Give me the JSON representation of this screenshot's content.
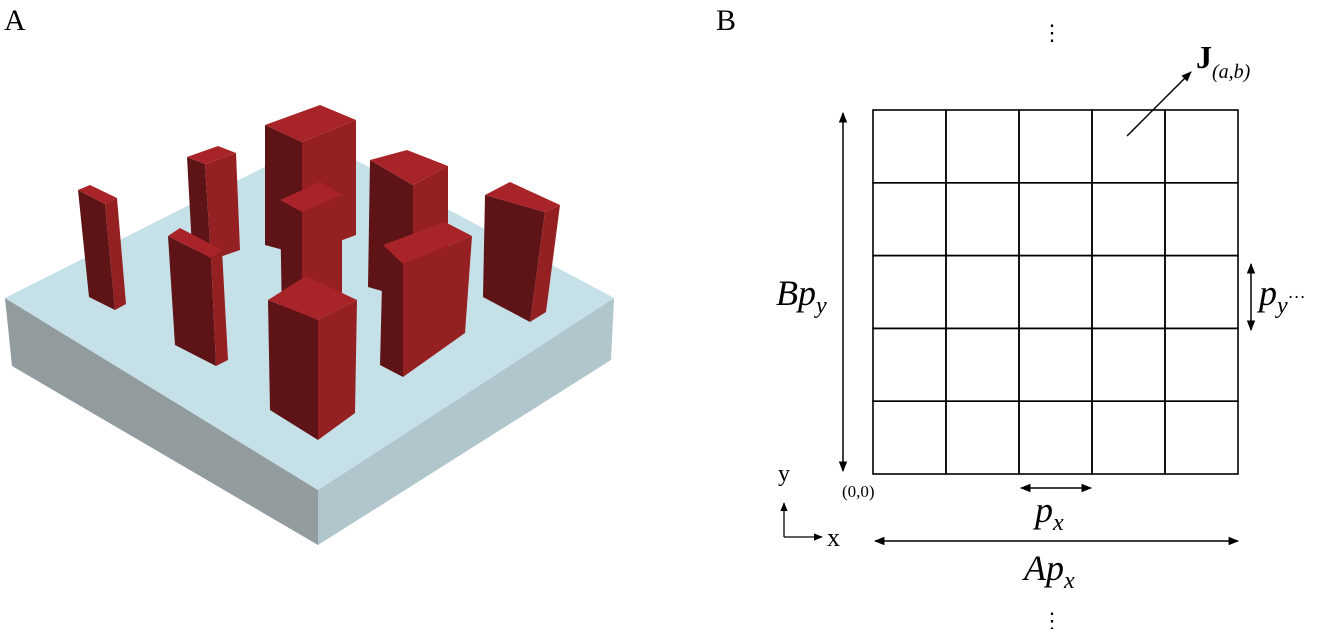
{
  "panel_a": {
    "label": "A",
    "colors": {
      "pillar_top": "#a82428",
      "pillar_left": "#5e1416",
      "pillar_right": "#952022",
      "slab_top": "#c6e0e8",
      "slab_left": "#929c9f",
      "slab_right": "#b0c6cc"
    },
    "pillar_count": 9
  },
  "panel_b": {
    "label": "B",
    "grid": {
      "columns": 5,
      "rows": 5
    },
    "cell_label": {
      "main": "J",
      "sub": "(a,b)"
    },
    "height_label": {
      "main": "Bp",
      "sub": "y"
    },
    "period_y_label": {
      "main": "p",
      "sub": "y",
      "trail": "···"
    },
    "period_x_label": {
      "main": "p",
      "sub": "x"
    },
    "width_label": {
      "main": "Ap",
      "sub": "x"
    },
    "origin_label": "(0,0)",
    "axis_y": "y",
    "axis_x": "x",
    "ellipsis_top": "⋮",
    "ellipsis_bottom": "⋮"
  }
}
